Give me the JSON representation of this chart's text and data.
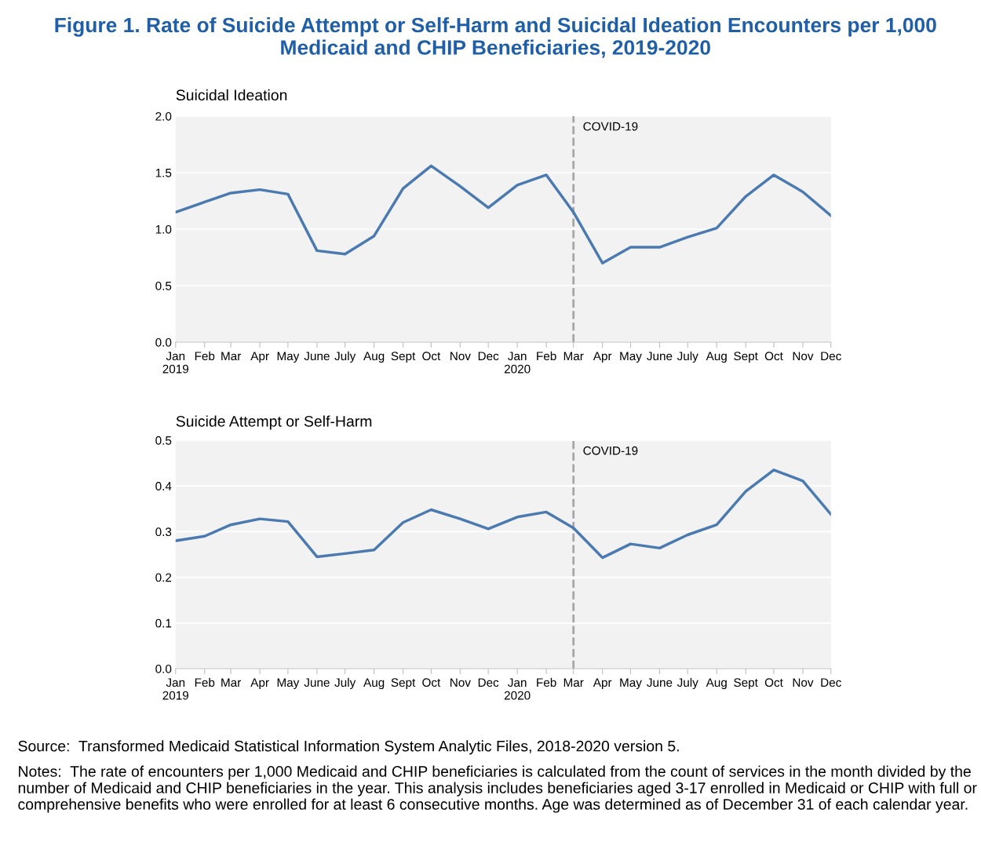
{
  "chart_data": [
    {
      "type": "line",
      "title": "Figure 1. Rate of Suicide Attempt or Self-Harm and Suicidal Ideation Encounters per 1,000 Medicaid and CHIP Beneficiaries, 2019-2020",
      "subtitle": "Suicidal Ideation",
      "x": [
        "2019-01",
        "2019-02",
        "2019-03",
        "2019-04",
        "2019-05",
        "2019-06",
        "2019-07",
        "2019-08",
        "2019-09",
        "2019-10",
        "2019-11",
        "2019-12",
        "2020-01",
        "2020-02",
        "2020-03",
        "2020-04",
        "2020-05",
        "2020-06",
        "2020-07",
        "2020-08",
        "2020-09",
        "2020-10",
        "2020-11",
        "2020-12"
      ],
      "series": [
        {
          "color": "#4a7ab0",
          "values": [
            1.15,
            1.24,
            1.32,
            1.35,
            1.31,
            0.81,
            0.78,
            0.94,
            1.36,
            1.56,
            1.38,
            1.19,
            1.39,
            1.48,
            1.15,
            0.7,
            0.84,
            0.84,
            0.93,
            1.01,
            1.29,
            1.48,
            1.33,
            1.12
          ]
        }
      ],
      "xlim": [
        "2019-01",
        "2020-12"
      ],
      "xticks": [
        {
          "value": "2019-01",
          "label": "Jan\n2019"
        },
        {
          "value": "2019-02",
          "label": "Feb"
        },
        {
          "value": "2019-03",
          "label": "Mar"
        },
        {
          "value": "2019-04",
          "label": "Apr"
        },
        {
          "value": "2019-05",
          "label": "May"
        },
        {
          "value": "2019-06",
          "label": "June"
        },
        {
          "value": "2019-07",
          "label": "July"
        },
        {
          "value": "2019-08",
          "label": "Aug"
        },
        {
          "value": "2019-09",
          "label": "Sept"
        },
        {
          "value": "2019-10",
          "label": "Oct"
        },
        {
          "value": "2019-11",
          "label": "Nov"
        },
        {
          "value": "2019-12",
          "label": "Dec"
        },
        {
          "value": "2020-01",
          "label": "Jan\n2020"
        },
        {
          "value": "2020-02",
          "label": "Feb"
        },
        {
          "value": "2020-03",
          "label": "Mar"
        },
        {
          "value": "2020-04",
          "label": "Apr"
        },
        {
          "value": "2020-05",
          "label": "May"
        },
        {
          "value": "2020-06",
          "label": "June"
        },
        {
          "value": "2020-07",
          "label": "July"
        },
        {
          "value": "2020-08",
          "label": "Aug"
        },
        {
          "value": "2020-09",
          "label": "Sept"
        },
        {
          "value": "2020-10",
          "label": "Oct"
        },
        {
          "value": "2020-11",
          "label": "Nov"
        },
        {
          "value": "2020-12",
          "label": "Dec"
        }
      ],
      "ylim": [
        0,
        2.0
      ],
      "yticks": [
        {
          "value": 0,
          "label": "0.0"
        },
        {
          "value": 0.5,
          "label": "0.5"
        },
        {
          "value": 1.0,
          "label": "1.0"
        },
        {
          "value": 1.5,
          "label": "1.5"
        },
        {
          "value": 2.0,
          "label": "2.0"
        }
      ],
      "grid": "y",
      "legend": false,
      "line_style": "solid",
      "marker": "none",
      "ref_lines": [
        {
          "axis": "x",
          "value": "2020-03",
          "label": "COVID-19",
          "color": "#a6a6a6",
          "line_style": "dashed"
        }
      ]
    },
    {
      "type": "line",
      "title": "Suicide Attempt or Self-Harm",
      "x": [
        "2019-01",
        "2019-02",
        "2019-03",
        "2019-04",
        "2019-05",
        "2019-06",
        "2019-07",
        "2019-08",
        "2019-09",
        "2019-10",
        "2019-11",
        "2019-12",
        "2020-01",
        "2020-02",
        "2020-03",
        "2020-04",
        "2020-05",
        "2020-06",
        "2020-07",
        "2020-08",
        "2020-09",
        "2020-10",
        "2020-11",
        "2020-12"
      ],
      "series": [
        {
          "color": "#4a7ab0",
          "values": [
            0.28,
            0.29,
            0.315,
            0.328,
            0.322,
            0.245,
            0.252,
            0.26,
            0.32,
            0.348,
            0.328,
            0.306,
            0.332,
            0.343,
            0.308,
            0.243,
            0.273,
            0.264,
            0.293,
            0.315,
            0.388,
            0.435,
            0.411,
            0.338
          ]
        }
      ],
      "xlim": [
        "2019-01",
        "2020-12"
      ],
      "xticks": [
        {
          "value": "2019-01",
          "label": "Jan\n2019"
        },
        {
          "value": "2019-02",
          "label": "Feb"
        },
        {
          "value": "2019-03",
          "label": "Mar"
        },
        {
          "value": "2019-04",
          "label": "Apr"
        },
        {
          "value": "2019-05",
          "label": "May"
        },
        {
          "value": "2019-06",
          "label": "June"
        },
        {
          "value": "2019-07",
          "label": "July"
        },
        {
          "value": "2019-08",
          "label": "Aug"
        },
        {
          "value": "2019-09",
          "label": "Sept"
        },
        {
          "value": "2019-10",
          "label": "Oct"
        },
        {
          "value": "2019-11",
          "label": "Nov"
        },
        {
          "value": "2019-12",
          "label": "Dec"
        },
        {
          "value": "2020-01",
          "label": "Jan\n2020"
        },
        {
          "value": "2020-02",
          "label": "Feb"
        },
        {
          "value": "2020-03",
          "label": "Mar"
        },
        {
          "value": "2020-04",
          "label": "Apr"
        },
        {
          "value": "2020-05",
          "label": "May"
        },
        {
          "value": "2020-06",
          "label": "June"
        },
        {
          "value": "2020-07",
          "label": "July"
        },
        {
          "value": "2020-08",
          "label": "Aug"
        },
        {
          "value": "2020-09",
          "label": "Sept"
        },
        {
          "value": "2020-10",
          "label": "Oct"
        },
        {
          "value": "2020-11",
          "label": "Nov"
        },
        {
          "value": "2020-12",
          "label": "Dec"
        }
      ],
      "ylim": [
        0,
        0.5
      ],
      "yticks": [
        {
          "value": 0,
          "label": "0.0"
        },
        0.1,
        0.2,
        0.3,
        0.4,
        0.5
      ],
      "grid": "y",
      "legend": false,
      "line_style": "solid",
      "marker": "none",
      "ref_lines": [
        {
          "axis": "x",
          "value": "2020-03",
          "label": "COVID-19",
          "color": "#a6a6a6",
          "line_style": "dashed"
        }
      ],
      "annotations": [
        "Source:  Transformed Medicaid Statistical Information System Analytic Files, 2018-2020 version 5.",
        "Notes:  The rate of encounters per 1,000 Medicaid and CHIP beneficiaries is calculated from the count of services in the month divided by the number of Medicaid and CHIP beneficiaries in the year. This analysis includes beneficiaries aged 3-17 enrolled in Medicaid or CHIP with full or comprehensive benefits who were enrolled for at least 6 consecutive months. Age was determined as of December 31 of each calendar year."
      ]
    }
  ]
}
